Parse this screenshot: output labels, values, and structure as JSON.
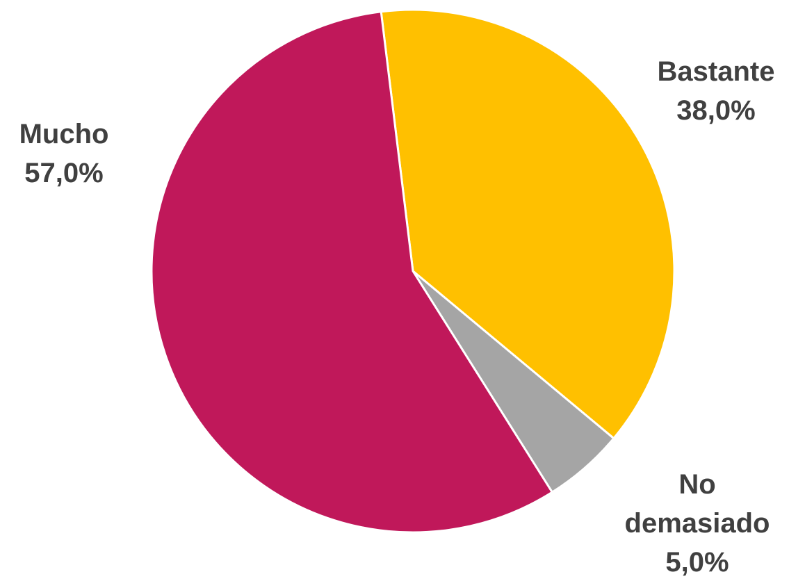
{
  "chart_data": {
    "type": "pie",
    "title": "",
    "start_angle_deg": -7,
    "direction": "clockwise",
    "slices": [
      {
        "label": "Bastante",
        "value": 38.0,
        "value_label": "38,0%",
        "color": "#FFC000"
      },
      {
        "label": "No demasiado",
        "label_lines": [
          "No",
          "demasiado"
        ],
        "value": 5.0,
        "value_label": "5,0%",
        "color": "#A5A5A5"
      },
      {
        "label": "Mucho",
        "value": 57.0,
        "value_label": "57,0%",
        "color": "#C0185A"
      }
    ],
    "legend": "none",
    "data_labels": "outside"
  }
}
